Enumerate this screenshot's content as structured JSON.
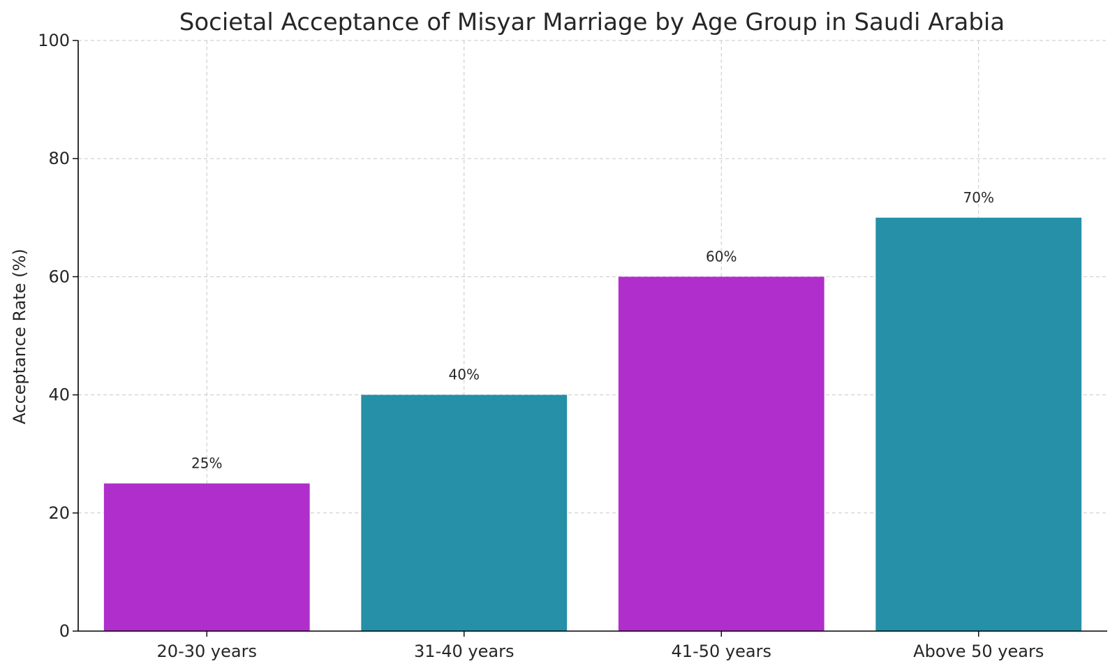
{
  "chart_data": {
    "type": "bar",
    "title": "Societal Acceptance of Misyar Marriage by Age Group in Saudi Arabia",
    "xlabel": "",
    "ylabel": "Acceptance Rate (%)",
    "categories": [
      "20-30 years",
      "31-40 years",
      "41-50 years",
      "Above 50 years"
    ],
    "values": [
      25,
      40,
      60,
      70
    ],
    "data_labels": [
      "25%",
      "40%",
      "60%",
      "70%"
    ],
    "ylim": [
      0,
      100
    ],
    "yticks": [
      0,
      20,
      40,
      60,
      80,
      100
    ],
    "grid": true,
    "colors": [
      "#b02ecb",
      "#2590a8",
      "#b02ecb",
      "#2590a8"
    ]
  }
}
